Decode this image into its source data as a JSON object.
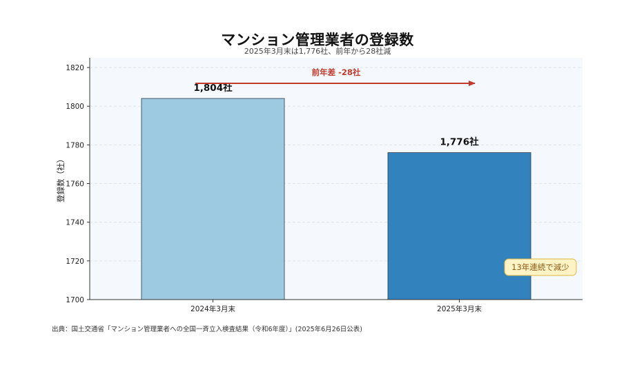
{
  "title": "マンション管理業者の登録数",
  "subtitle": "2025年3月末は1,776社、前年から28社減",
  "source": "出典：国土交通省「マンション管理業者への全国一斉立入検査結果（令和6年度）」(2025年6月26日公表)",
  "chart_data": {
    "type": "bar",
    "categories": [
      "2024年3月末",
      "2025年3月末"
    ],
    "values": [
      1804,
      1776
    ],
    "value_labels": [
      "1,804社",
      "1,776社"
    ],
    "ylabel": "登録数（社）",
    "ylim": [
      1700,
      1825
    ],
    "yticks": [
      1700,
      1720,
      1740,
      1760,
      1780,
      1800,
      1820
    ],
    "grid": true,
    "bar_colors": [
      "#9ecae1",
      "#3182bd"
    ],
    "bar_edge_color": "#2b3a4a",
    "plot_background": "#f5f9fd",
    "annotations": {
      "change_label": "前年差 -28社",
      "change_color": "#c0392b",
      "badge": "13年連続で減少",
      "badge_background": "#fdf3c4",
      "badge_border": "#e0b64a",
      "badge_text_color": "#8a5a12"
    }
  }
}
